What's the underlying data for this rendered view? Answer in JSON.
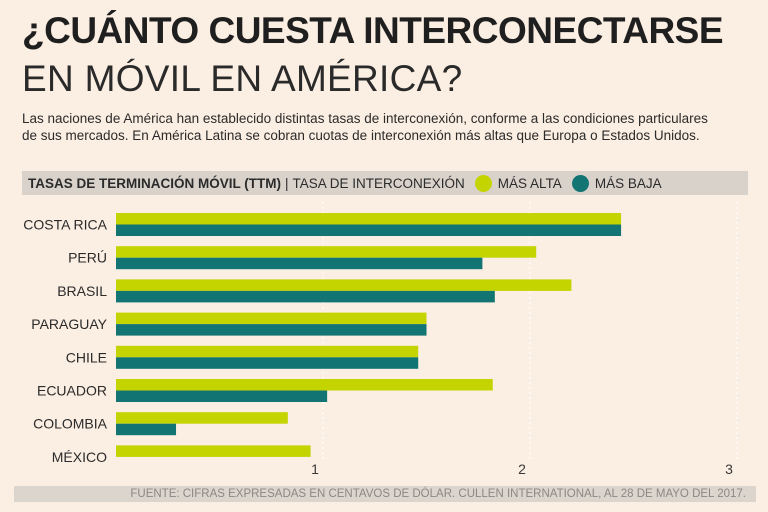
{
  "title": {
    "line1": "¿CUÁNTO CUESTA INTERCONECTARSE",
    "line2": "EN MÓVIL EN AMÉRICA?"
  },
  "description": "Las naciones de América han establecido distintas tasas de interconexión, conforme a las condiciones particulares de sus mercados. En América Latina se cobran cuotas de interconexión más altas que Europa o Estados Unidos.",
  "legend": {
    "heading": "TASAS DE TERMINACIÓN MÓVIL (TTM)",
    "separator": "|",
    "subheading": "TASA DE INTERCONEXIÓN",
    "high_label": "MÁS ALTA",
    "low_label": "MÁS BAJA"
  },
  "colors": {
    "high": "#c3d400",
    "low": "#127574",
    "gridline": "#ffffff"
  },
  "chart_data": {
    "type": "bar",
    "orientation": "horizontal",
    "categories": [
      "COSTA RICA",
      "PERÚ",
      "BRASIL",
      "PARAGUAY",
      "CHILE",
      "ECUADOR",
      "COLOMBIA",
      "MÉXICO"
    ],
    "series": [
      {
        "name": "MÁS ALTA",
        "values": [
          2.44,
          2.03,
          2.2,
          1.5,
          1.46,
          1.82,
          0.83,
          0.94
        ]
      },
      {
        "name": "MÁS BAJA",
        "values": [
          2.44,
          1.77,
          1.83,
          1.5,
          1.46,
          1.02,
          0.29,
          null
        ]
      }
    ],
    "xticks": [
      "1",
      "2",
      "3"
    ],
    "xtick_values": [
      1,
      2,
      3
    ],
    "xlim": [
      0,
      3
    ],
    "grid": true
  },
  "source": "FUENTE: CIFRAS EXPRESADAS EN CENTAVOS DE DÓLAR. CULLEN INTERNATIONAL, AL 28 DE MAYO DEL 2017."
}
